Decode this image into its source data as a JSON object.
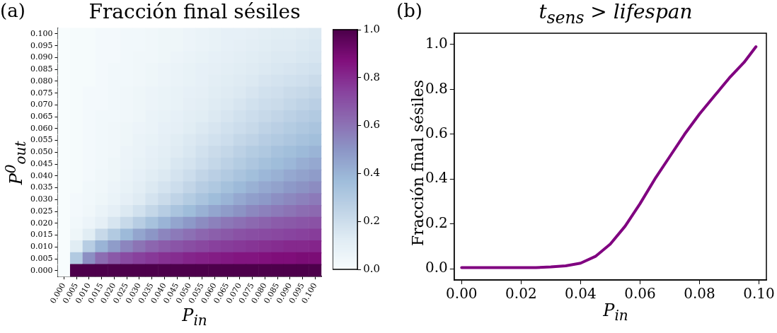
{
  "chart_data": [
    {
      "type": "heatmap",
      "title": "Fracción final sésiles",
      "xlabel": "P$_{in}$",
      "ylabel": "P$^{0}$$_{out}$",
      "annotations": [
        "(a)"
      ],
      "categories": [
        "0.000",
        "0.005",
        "0.010",
        "0.015",
        "0.020",
        "0.025",
        "0.030",
        "0.035",
        "0.040",
        "0.045",
        "0.050",
        "0.055",
        "0.060",
        "0.065",
        "0.070",
        "0.075",
        "0.080",
        "0.085",
        "0.090",
        "0.095",
        "0.100"
      ],
      "y_categories": [
        "0.100",
        "0.095",
        "0.090",
        "0.085",
        "0.080",
        "0.075",
        "0.070",
        "0.065",
        "0.060",
        "0.055",
        "0.050",
        "0.045",
        "0.040",
        "0.035",
        "0.030",
        "0.025",
        "0.020",
        "0.015",
        "0.010",
        "0.005",
        "0.000"
      ],
      "cells": [
        [
          0,
          0.01,
          0.01,
          0.02,
          0.02,
          0.03,
          0.03,
          0.04,
          0.05,
          0.05,
          0.06,
          0.07,
          0.08,
          0.09,
          0.09,
          0.1,
          0.11,
          0.12,
          0.12,
          0.13,
          0.14
        ],
        [
          0,
          0.01,
          0.01,
          0.02,
          0.02,
          0.03,
          0.03,
          0.04,
          0.05,
          0.05,
          0.06,
          0.07,
          0.08,
          0.09,
          0.1,
          0.11,
          0.12,
          0.13,
          0.13,
          0.14,
          0.15
        ],
        [
          0,
          0.01,
          0.01,
          0.02,
          0.02,
          0.03,
          0.04,
          0.04,
          0.05,
          0.06,
          0.07,
          0.08,
          0.09,
          0.1,
          0.11,
          0.12,
          0.13,
          0.14,
          0.14,
          0.15,
          0.16
        ],
        [
          0,
          0.01,
          0.01,
          0.02,
          0.03,
          0.03,
          0.04,
          0.05,
          0.06,
          0.07,
          0.08,
          0.09,
          0.1,
          0.11,
          0.12,
          0.13,
          0.14,
          0.15,
          0.16,
          0.17,
          0.18
        ],
        [
          0,
          0.01,
          0.01,
          0.02,
          0.03,
          0.03,
          0.04,
          0.05,
          0.06,
          0.07,
          0.08,
          0.09,
          0.11,
          0.12,
          0.13,
          0.14,
          0.16,
          0.17,
          0.18,
          0.19,
          0.21
        ],
        [
          0,
          0.01,
          0.02,
          0.02,
          0.03,
          0.04,
          0.05,
          0.06,
          0.07,
          0.08,
          0.09,
          0.1,
          0.12,
          0.13,
          0.14,
          0.16,
          0.18,
          0.19,
          0.21,
          0.22,
          0.24
        ],
        [
          0,
          0.01,
          0.02,
          0.02,
          0.03,
          0.04,
          0.05,
          0.06,
          0.07,
          0.08,
          0.1,
          0.11,
          0.13,
          0.14,
          0.16,
          0.18,
          0.2,
          0.21,
          0.23,
          0.25,
          0.27
        ],
        [
          0,
          0.01,
          0.02,
          0.03,
          0.03,
          0.04,
          0.05,
          0.07,
          0.08,
          0.09,
          0.11,
          0.12,
          0.14,
          0.16,
          0.18,
          0.2,
          0.22,
          0.24,
          0.26,
          0.28,
          0.3
        ],
        [
          0,
          0.01,
          0.02,
          0.03,
          0.04,
          0.05,
          0.06,
          0.07,
          0.09,
          0.1,
          0.12,
          0.14,
          0.16,
          0.18,
          0.2,
          0.22,
          0.25,
          0.27,
          0.29,
          0.31,
          0.33
        ],
        [
          0,
          0.01,
          0.02,
          0.03,
          0.04,
          0.05,
          0.07,
          0.08,
          0.1,
          0.12,
          0.14,
          0.16,
          0.18,
          0.2,
          0.23,
          0.25,
          0.28,
          0.3,
          0.32,
          0.34,
          0.36
        ],
        [
          0,
          0.01,
          0.02,
          0.03,
          0.04,
          0.06,
          0.07,
          0.09,
          0.11,
          0.13,
          0.15,
          0.18,
          0.21,
          0.23,
          0.26,
          0.29,
          0.31,
          0.34,
          0.36,
          0.38,
          0.4
        ],
        [
          0,
          0.01,
          0.02,
          0.03,
          0.05,
          0.06,
          0.08,
          0.1,
          0.12,
          0.15,
          0.17,
          0.2,
          0.23,
          0.26,
          0.29,
          0.32,
          0.35,
          0.37,
          0.39,
          0.42,
          0.44
        ],
        [
          0,
          0.01,
          0.02,
          0.04,
          0.05,
          0.07,
          0.09,
          0.12,
          0.14,
          0.17,
          0.2,
          0.24,
          0.27,
          0.3,
          0.33,
          0.36,
          0.39,
          0.41,
          0.44,
          0.46,
          0.48
        ],
        [
          0,
          0.01,
          0.03,
          0.04,
          0.06,
          0.08,
          0.11,
          0.14,
          0.17,
          0.2,
          0.24,
          0.28,
          0.31,
          0.35,
          0.38,
          0.41,
          0.44,
          0.46,
          0.49,
          0.51,
          0.53
        ],
        [
          0,
          0.02,
          0.03,
          0.05,
          0.07,
          0.1,
          0.13,
          0.17,
          0.21,
          0.25,
          0.29,
          0.33,
          0.37,
          0.4,
          0.44,
          0.47,
          0.49,
          0.52,
          0.54,
          0.56,
          0.58
        ],
        [
          0,
          0.02,
          0.04,
          0.07,
          0.1,
          0.14,
          0.18,
          0.23,
          0.28,
          0.33,
          0.37,
          0.41,
          0.45,
          0.48,
          0.51,
          0.54,
          0.56,
          0.58,
          0.6,
          0.62,
          0.63
        ],
        [
          0,
          0.03,
          0.06,
          0.1,
          0.16,
          0.22,
          0.28,
          0.34,
          0.4,
          0.45,
          0.49,
          0.53,
          0.56,
          0.59,
          0.61,
          0.63,
          0.65,
          0.67,
          0.68,
          0.69,
          0.7
        ],
        [
          0,
          0.05,
          0.12,
          0.22,
          0.3,
          0.38,
          0.45,
          0.5,
          0.55,
          0.58,
          0.61,
          0.64,
          0.66,
          0.68,
          0.7,
          0.71,
          0.72,
          0.73,
          0.74,
          0.75,
          0.76
        ],
        [
          0,
          0.12,
          0.28,
          0.4,
          0.48,
          0.55,
          0.6,
          0.64,
          0.67,
          0.69,
          0.71,
          0.73,
          0.75,
          0.76,
          0.77,
          0.78,
          0.79,
          0.8,
          0.81,
          0.81,
          0.82
        ],
        [
          0,
          0.3,
          0.52,
          0.62,
          0.68,
          0.72,
          0.75,
          0.77,
          0.79,
          0.8,
          0.82,
          0.83,
          0.84,
          0.85,
          0.86,
          0.86,
          0.87,
          0.88,
          0.88,
          0.89,
          0.89
        ],
        [
          0,
          1,
          1,
          1,
          1,
          1,
          1,
          1,
          1,
          1,
          1,
          1,
          1,
          1,
          1,
          1,
          1,
          1,
          1,
          1,
          1
        ]
      ],
      "clim": [
        0,
        1
      ],
      "cticks": [
        {
          "value": 0,
          "label": "0.0"
        },
        0.2,
        0.4,
        0.6,
        0.8,
        {
          "value": 1,
          "label": "1.0"
        }
      ]
    },
    {
      "type": "line",
      "title": "t$_{sens}$ > lifespan",
      "xlabel": "P$_{in}$",
      "ylabel": "Fracción final sésiles",
      "annotations": [
        "(b)"
      ],
      "x": [
        0,
        0.005,
        0.01,
        0.015,
        0.02,
        0.025,
        0.03,
        0.035,
        0.04,
        0.045,
        0.05,
        0.055,
        0.06,
        0.065,
        0.07,
        0.075,
        0.08,
        0.085,
        0.09,
        0.095,
        0.099
      ],
      "series": [
        {
          "color": "#800080",
          "values": [
            0.005,
            0.005,
            0.005,
            0.005,
            0.005,
            0.005,
            0.008,
            0.013,
            0.025,
            0.055,
            0.11,
            0.19,
            0.29,
            0.4,
            0.5,
            0.6,
            0.69,
            0.77,
            0.85,
            0.92,
            0.99
          ]
        }
      ],
      "xlim": [
        -0.0025,
        0.1025
      ],
      "xticks": [
        {
          "value": 0,
          "label": "0.00"
        },
        0.02,
        0.04,
        0.06,
        0.08,
        {
          "value": 0.1,
          "label": "0.10"
        }
      ],
      "ylim": [
        -0.05,
        1.05
      ],
      "yticks": [
        {
          "value": 0,
          "label": "0.0"
        },
        0.2,
        0.4,
        0.6,
        0.8,
        {
          "value": 1,
          "label": "1.0"
        }
      ],
      "grid": false,
      "legend": false
    }
  ]
}
